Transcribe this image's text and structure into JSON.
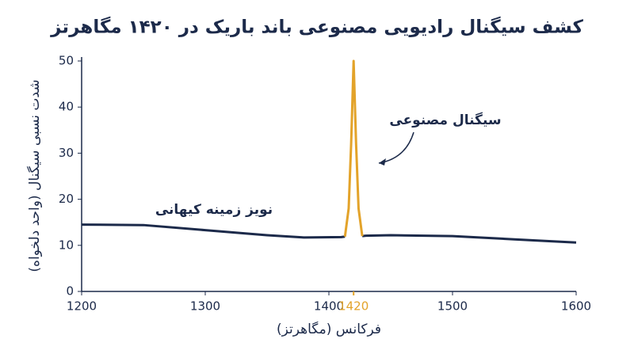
{
  "chart_data": {
    "type": "line",
    "title": "کشف سیگنال رادیویی مصنوعی باند باریک در ۱۴۲۰ مگاهرتز",
    "xlabel": "فرکانس (مگاهرتز)",
    "ylabel": "شدت نسبی سیگنال (واحد دلخواه)",
    "x": [
      1200,
      1250,
      1300,
      1350,
      1380,
      1410,
      1413,
      1416,
      1418,
      1420,
      1422,
      1424,
      1427,
      1430,
      1450,
      1500,
      1550,
      1600
    ],
    "series": [
      {
        "name": "نویز زمینه کیهانی",
        "color": "#1c2a4a",
        "values": [
          14.5,
          14.4,
          13.3,
          12.2,
          11.7,
          11.8,
          11.9,
          null,
          null,
          null,
          null,
          null,
          12,
          12.1,
          12.2,
          12,
          11.3,
          10.6
        ]
      },
      {
        "name": "سیگنال مصنوعی",
        "color": "#e3a32a",
        "values": [
          null,
          null,
          null,
          null,
          null,
          null,
          11.9,
          18,
          32,
          50,
          32,
          18,
          12,
          null,
          null,
          null,
          null,
          null
        ]
      }
    ],
    "xlim": [
      1200,
      1600
    ],
    "xticks": [
      1200,
      1300,
      1400,
      1420,
      1500,
      1600
    ],
    "ylim": [
      0,
      50
    ],
    "yticks": [
      0,
      10,
      20,
      30,
      40,
      50
    ]
  }
}
